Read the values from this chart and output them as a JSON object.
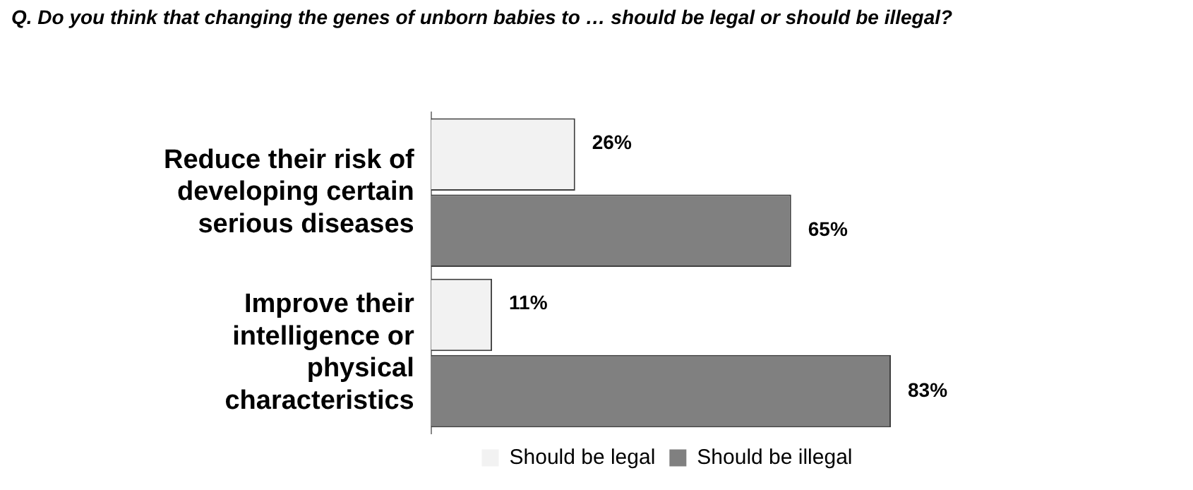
{
  "chart_data": {
    "type": "bar",
    "orientation": "horizontal",
    "title": "Q. Do you think that changing the genes of unborn babies to …  should be legal or should be illegal?",
    "categories": [
      "Reduce their risk of developing certain serious diseases",
      "Improve their intelligence or physical characteristics"
    ],
    "series": [
      {
        "name": "Should be legal",
        "color": "#f2f2f2",
        "values": [
          26,
          11
        ],
        "value_labels": [
          "26%",
          "11%"
        ]
      },
      {
        "name": "Should be illegal",
        "color": "#808080",
        "values": [
          65,
          83
        ],
        "value_labels": [
          "65%",
          "83%"
        ]
      }
    ],
    "legend": "bottom",
    "grid": false,
    "tick_labels": "y"
  }
}
